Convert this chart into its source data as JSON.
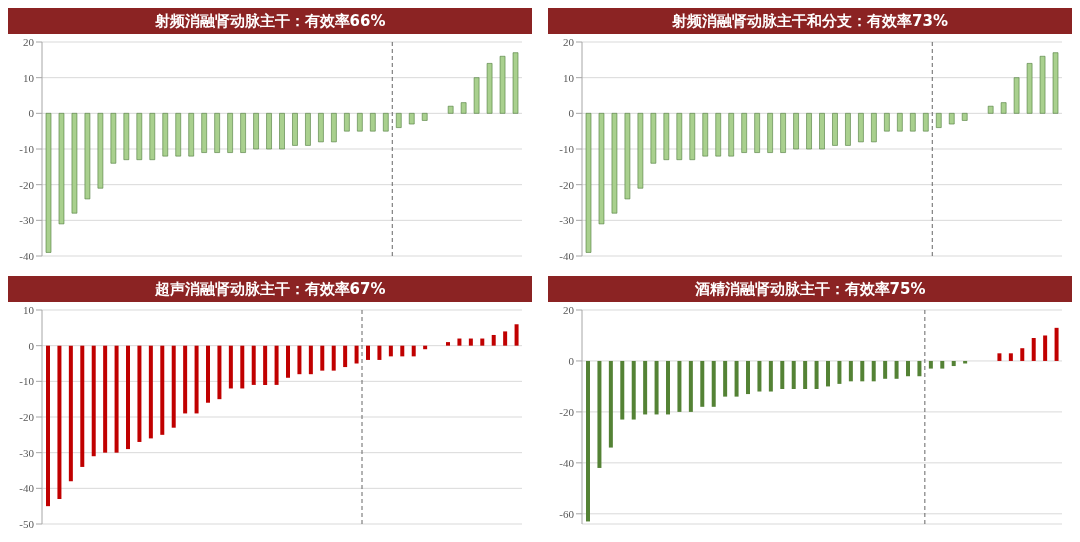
{
  "chart_data": [
    {
      "type": "bar",
      "title": "射频消融肾动脉主干：有效率66%",
      "categories": [
        null,
        null,
        null,
        null,
        null,
        null,
        null,
        null,
        null,
        null,
        null,
        null,
        null,
        null,
        null,
        null,
        null,
        null,
        null,
        null,
        null,
        null,
        null,
        null,
        null,
        null,
        null,
        null,
        null,
        null,
        null,
        null,
        null,
        null,
        null,
        null,
        null
      ],
      "color": "#a9d08e",
      "values": [
        -39,
        -31,
        -28,
        -24,
        -21,
        -14,
        -13,
        -13,
        -13,
        -12,
        -12,
        -12,
        -11,
        -11,
        -11,
        -11,
        -10,
        -10,
        -10,
        -9,
        -9,
        -8,
        -8,
        -5,
        -5,
        -5,
        -5,
        -4,
        -3,
        -2,
        0,
        2,
        3,
        10,
        14,
        16,
        17
      ],
      "ylim": [
        -40,
        20
      ],
      "yticks": [
        -40,
        -30,
        -20,
        -10,
        0,
        10,
        20
      ],
      "grid": "y"
    },
    {
      "type": "bar",
      "title": "射频消融肾动脉主干和分支：有效率73%",
      "categories": [
        null,
        null,
        null,
        null,
        null,
        null,
        null,
        null,
        null,
        null,
        null,
        null,
        null,
        null,
        null,
        null,
        null,
        null,
        null,
        null,
        null,
        null,
        null,
        null,
        null,
        null,
        null,
        null,
        null,
        null,
        null,
        null,
        null,
        null,
        null,
        null,
        null
      ],
      "color": "#a9d08e",
      "values": [
        -39,
        -31,
        -28,
        -24,
        -21,
        -14,
        -13,
        -13,
        -13,
        -12,
        -12,
        -12,
        -11,
        -11,
        -11,
        -11,
        -10,
        -10,
        -10,
        -9,
        -9,
        -8,
        -8,
        -5,
        -5,
        -5,
        -5,
        -4,
        -3,
        -2,
        0,
        2,
        3,
        10,
        14,
        16,
        17
      ],
      "ylim": [
        -40,
        20
      ],
      "yticks": [
        -40,
        -30,
        -20,
        -10,
        0,
        10,
        20
      ],
      "grid": "y"
    },
    {
      "type": "bar",
      "title": "超声消融肾动脉主干：有效率67%",
      "categories": [
        null,
        null,
        null,
        null,
        null,
        null,
        null,
        null,
        null,
        null,
        null,
        null,
        null,
        null,
        null,
        null,
        null,
        null,
        null,
        null,
        null,
        null,
        null,
        null,
        null,
        null,
        null,
        null,
        null,
        null,
        null,
        null,
        null,
        null,
        null,
        null,
        null,
        null,
        null,
        null,
        null,
        null
      ],
      "color": "#c00000",
      "values": [
        -45,
        -43,
        -38,
        -34,
        -31,
        -30,
        -30,
        -29,
        -27,
        -26,
        -25,
        -23,
        -19,
        -19,
        -16,
        -15,
        -12,
        -12,
        -11,
        -11,
        -11,
        -9,
        -8,
        -8,
        -7,
        -7,
        -6,
        -5,
        -4,
        -4,
        -3,
        -3,
        -3,
        -1,
        0,
        1,
        2,
        2,
        2,
        3,
        4,
        6
      ],
      "ylim": [
        -50,
        10
      ],
      "yticks": [
        -50,
        -40,
        -30,
        -20,
        -10,
        0,
        10
      ],
      "grid": "y"
    },
    {
      "type": "bar",
      "title": "酒精消融肾动脉主干：有效率75%",
      "categories": [
        null,
        null,
        null,
        null,
        null,
        null,
        null,
        null,
        null,
        null,
        null,
        null,
        null,
        null,
        null,
        null,
        null,
        null,
        null,
        null,
        null,
        null,
        null,
        null,
        null,
        null,
        null,
        null,
        null,
        null,
        null,
        null,
        null,
        null,
        null,
        null,
        null,
        null,
        null,
        null,
        null,
        null
      ],
      "values": [
        -63,
        -42,
        -34,
        -23,
        -23,
        -21,
        -21,
        -21,
        -20,
        -20,
        -18,
        -18,
        -14,
        -14,
        -13,
        -12,
        -12,
        -11,
        -11,
        -11,
        -11,
        -10,
        -9,
        -8,
        -8,
        -8,
        -7,
        -7,
        -6,
        -6,
        -3,
        -3,
        -2,
        -1,
        0,
        0,
        3,
        3,
        5,
        9,
        10,
        13
      ],
      "colors": [
        "#548235",
        "#548235",
        "#548235",
        "#548235",
        "#548235",
        "#548235",
        "#548235",
        "#548235",
        "#548235",
        "#548235",
        "#548235",
        "#548235",
        "#548235",
        "#548235",
        "#548235",
        "#548235",
        "#548235",
        "#548235",
        "#548235",
        "#548235",
        "#548235",
        "#548235",
        "#548235",
        "#548235",
        "#548235",
        "#548235",
        "#548235",
        "#548235",
        "#548235",
        "#548235",
        "#548235",
        "#548235",
        "#548235",
        "#548235",
        "#548235",
        "#548235",
        "#c00000",
        "#c00000",
        "#c00000",
        "#c00000",
        "#c00000",
        "#c00000"
      ],
      "ylim": [
        -64,
        20
      ],
      "yticks": [
        -60,
        -40,
        -20,
        0,
        20
      ],
      "grid": "y"
    }
  ]
}
